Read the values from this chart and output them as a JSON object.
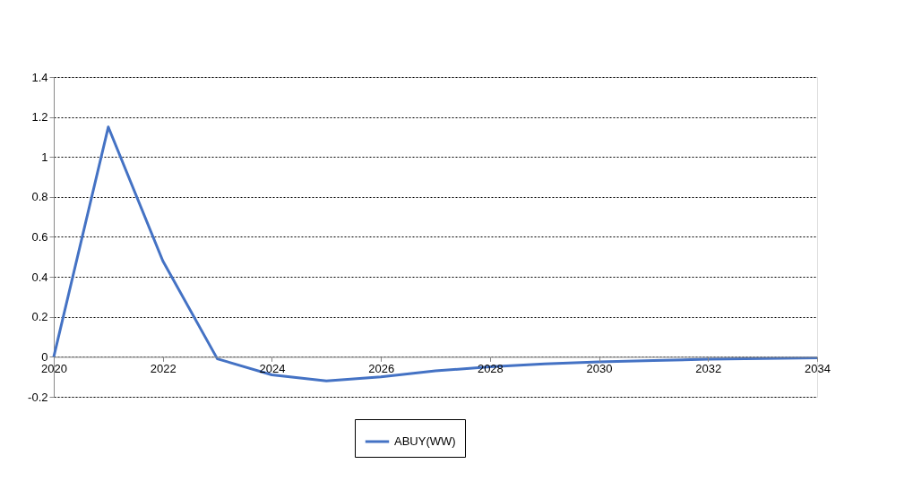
{
  "chart_data": {
    "type": "line",
    "x": [
      2020,
      2021,
      2022,
      2023,
      2024,
      2025,
      2026,
      2027,
      2028,
      2029,
      2030,
      2031,
      2032,
      2033,
      2034
    ],
    "series": [
      {
        "name": "ABUY(WW)",
        "color": "#4472c4",
        "values": [
          0,
          1.15,
          0.48,
          -0.01,
          -0.09,
          -0.12,
          -0.1,
          -0.07,
          -0.05,
          -0.035,
          -0.025,
          -0.018,
          -0.012,
          -0.008,
          -0.005
        ]
      }
    ],
    "xlim": [
      2020,
      2034
    ],
    "xticks": [
      2020,
      2022,
      2024,
      2026,
      2028,
      2030,
      2032,
      2034
    ],
    "ylim": [
      -0.2,
      1.4
    ],
    "yticks": [
      -0.2,
      0,
      0.2,
      0.4,
      0.6,
      0.8,
      1,
      1.2,
      1.4
    ],
    "grid": "y",
    "legend": "bottom",
    "marker": "none",
    "line_style": "solid"
  }
}
